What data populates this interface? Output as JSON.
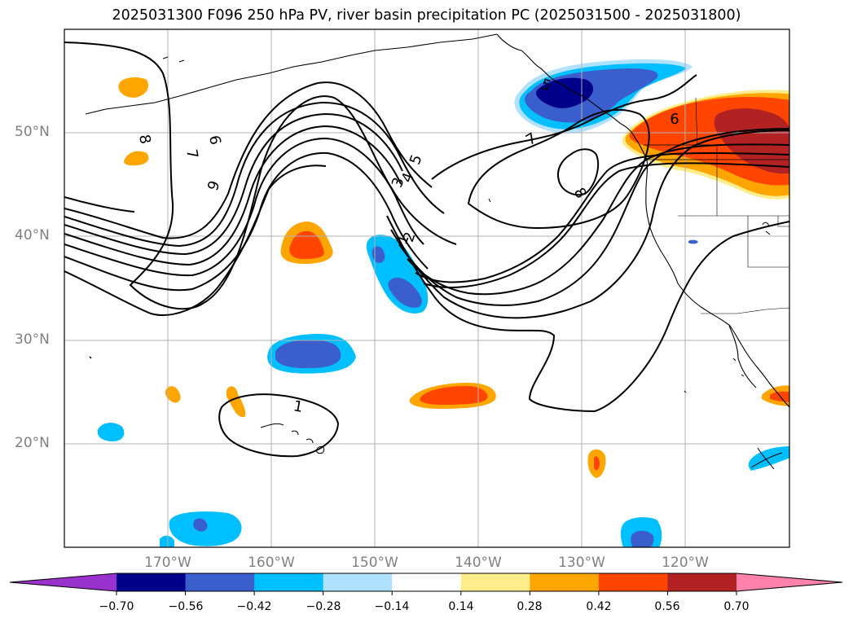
{
  "title": "2025031300 F096 250 hPa PV, river basin precipitation PC (2025031500 - 2025031800)",
  "lat_labels": [
    "20°N",
    "30°N",
    "40°N",
    "50°N"
  ],
  "lon_labels": [
    "170°W",
    "160°W",
    "150°W",
    "140°W",
    "130°W",
    "120°W"
  ],
  "pv_contour_labels": [
    "1",
    "2",
    "3",
    "4",
    "5",
    "6",
    "7",
    "8",
    "9",
    "6",
    "7",
    "8",
    "5",
    "1"
  ],
  "colorbar": {
    "tick_labels": [
      "−0.70",
      "−0.56",
      "−0.42",
      "−0.28",
      "−0.14",
      "0.14",
      "0.28",
      "0.42",
      "0.56",
      "0.70"
    ],
    "colors": [
      "#9932cc",
      "#00008b",
      "#3a5fcd",
      "#00bfff",
      "#b0e2ff",
      "#ffffff",
      "#ffec8b",
      "#ffa500",
      "#ff4500",
      "#b22222",
      "#ff82ab"
    ]
  }
}
